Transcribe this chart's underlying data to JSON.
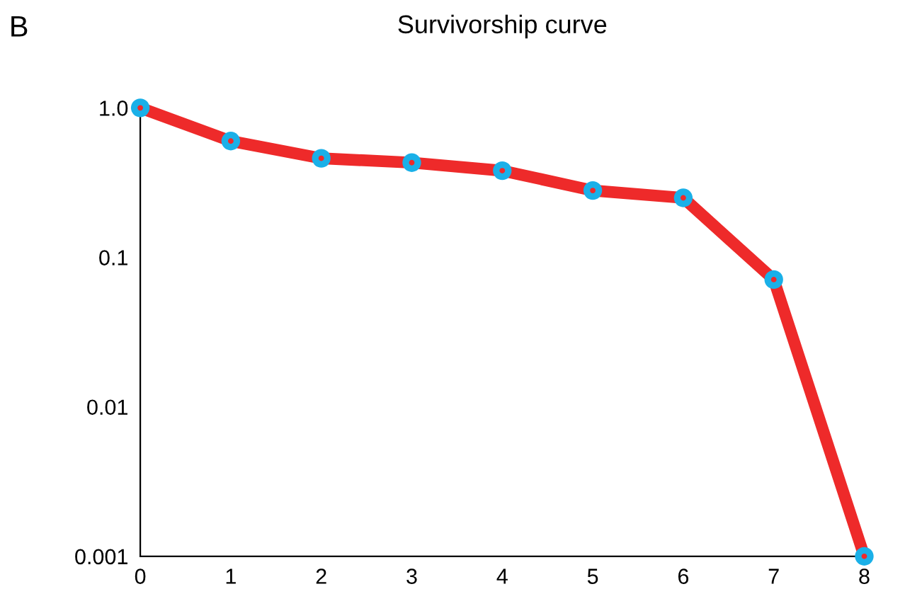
{
  "chart_data": {
    "type": "line",
    "title": "Survivorship curve",
    "annotations": [
      "B"
    ],
    "x": [
      0,
      1,
      2,
      3,
      4,
      5,
      6,
      7,
      8
    ],
    "series": [
      {
        "color": "#ee2a2a",
        "colors": [
          "#1ab0e8",
          "#1ab0e8",
          "#1ab0e8",
          "#1ab0e8",
          "#1ab0e8",
          "#1ab0e8",
          "#1ab0e8",
          "#1ab0e8",
          "#1ab0e8"
        ],
        "values": [
          1.0,
          0.6,
          0.46,
          0.43,
          0.38,
          0.28,
          0.25,
          0.071,
          0.001
        ]
      }
    ],
    "log": "y",
    "xlim": [
      0,
      8
    ],
    "xticks": [
      0,
      1,
      2,
      3,
      4,
      5,
      6,
      7,
      8
    ],
    "ylim": [
      0.001,
      1
    ],
    "yticks": [
      {
        "value": 1,
        "label": "1.0"
      },
      0.1,
      0.01,
      0.001
    ],
    "grid": false,
    "marker": "circle",
    "line_style": "solid",
    "legend": false
  }
}
